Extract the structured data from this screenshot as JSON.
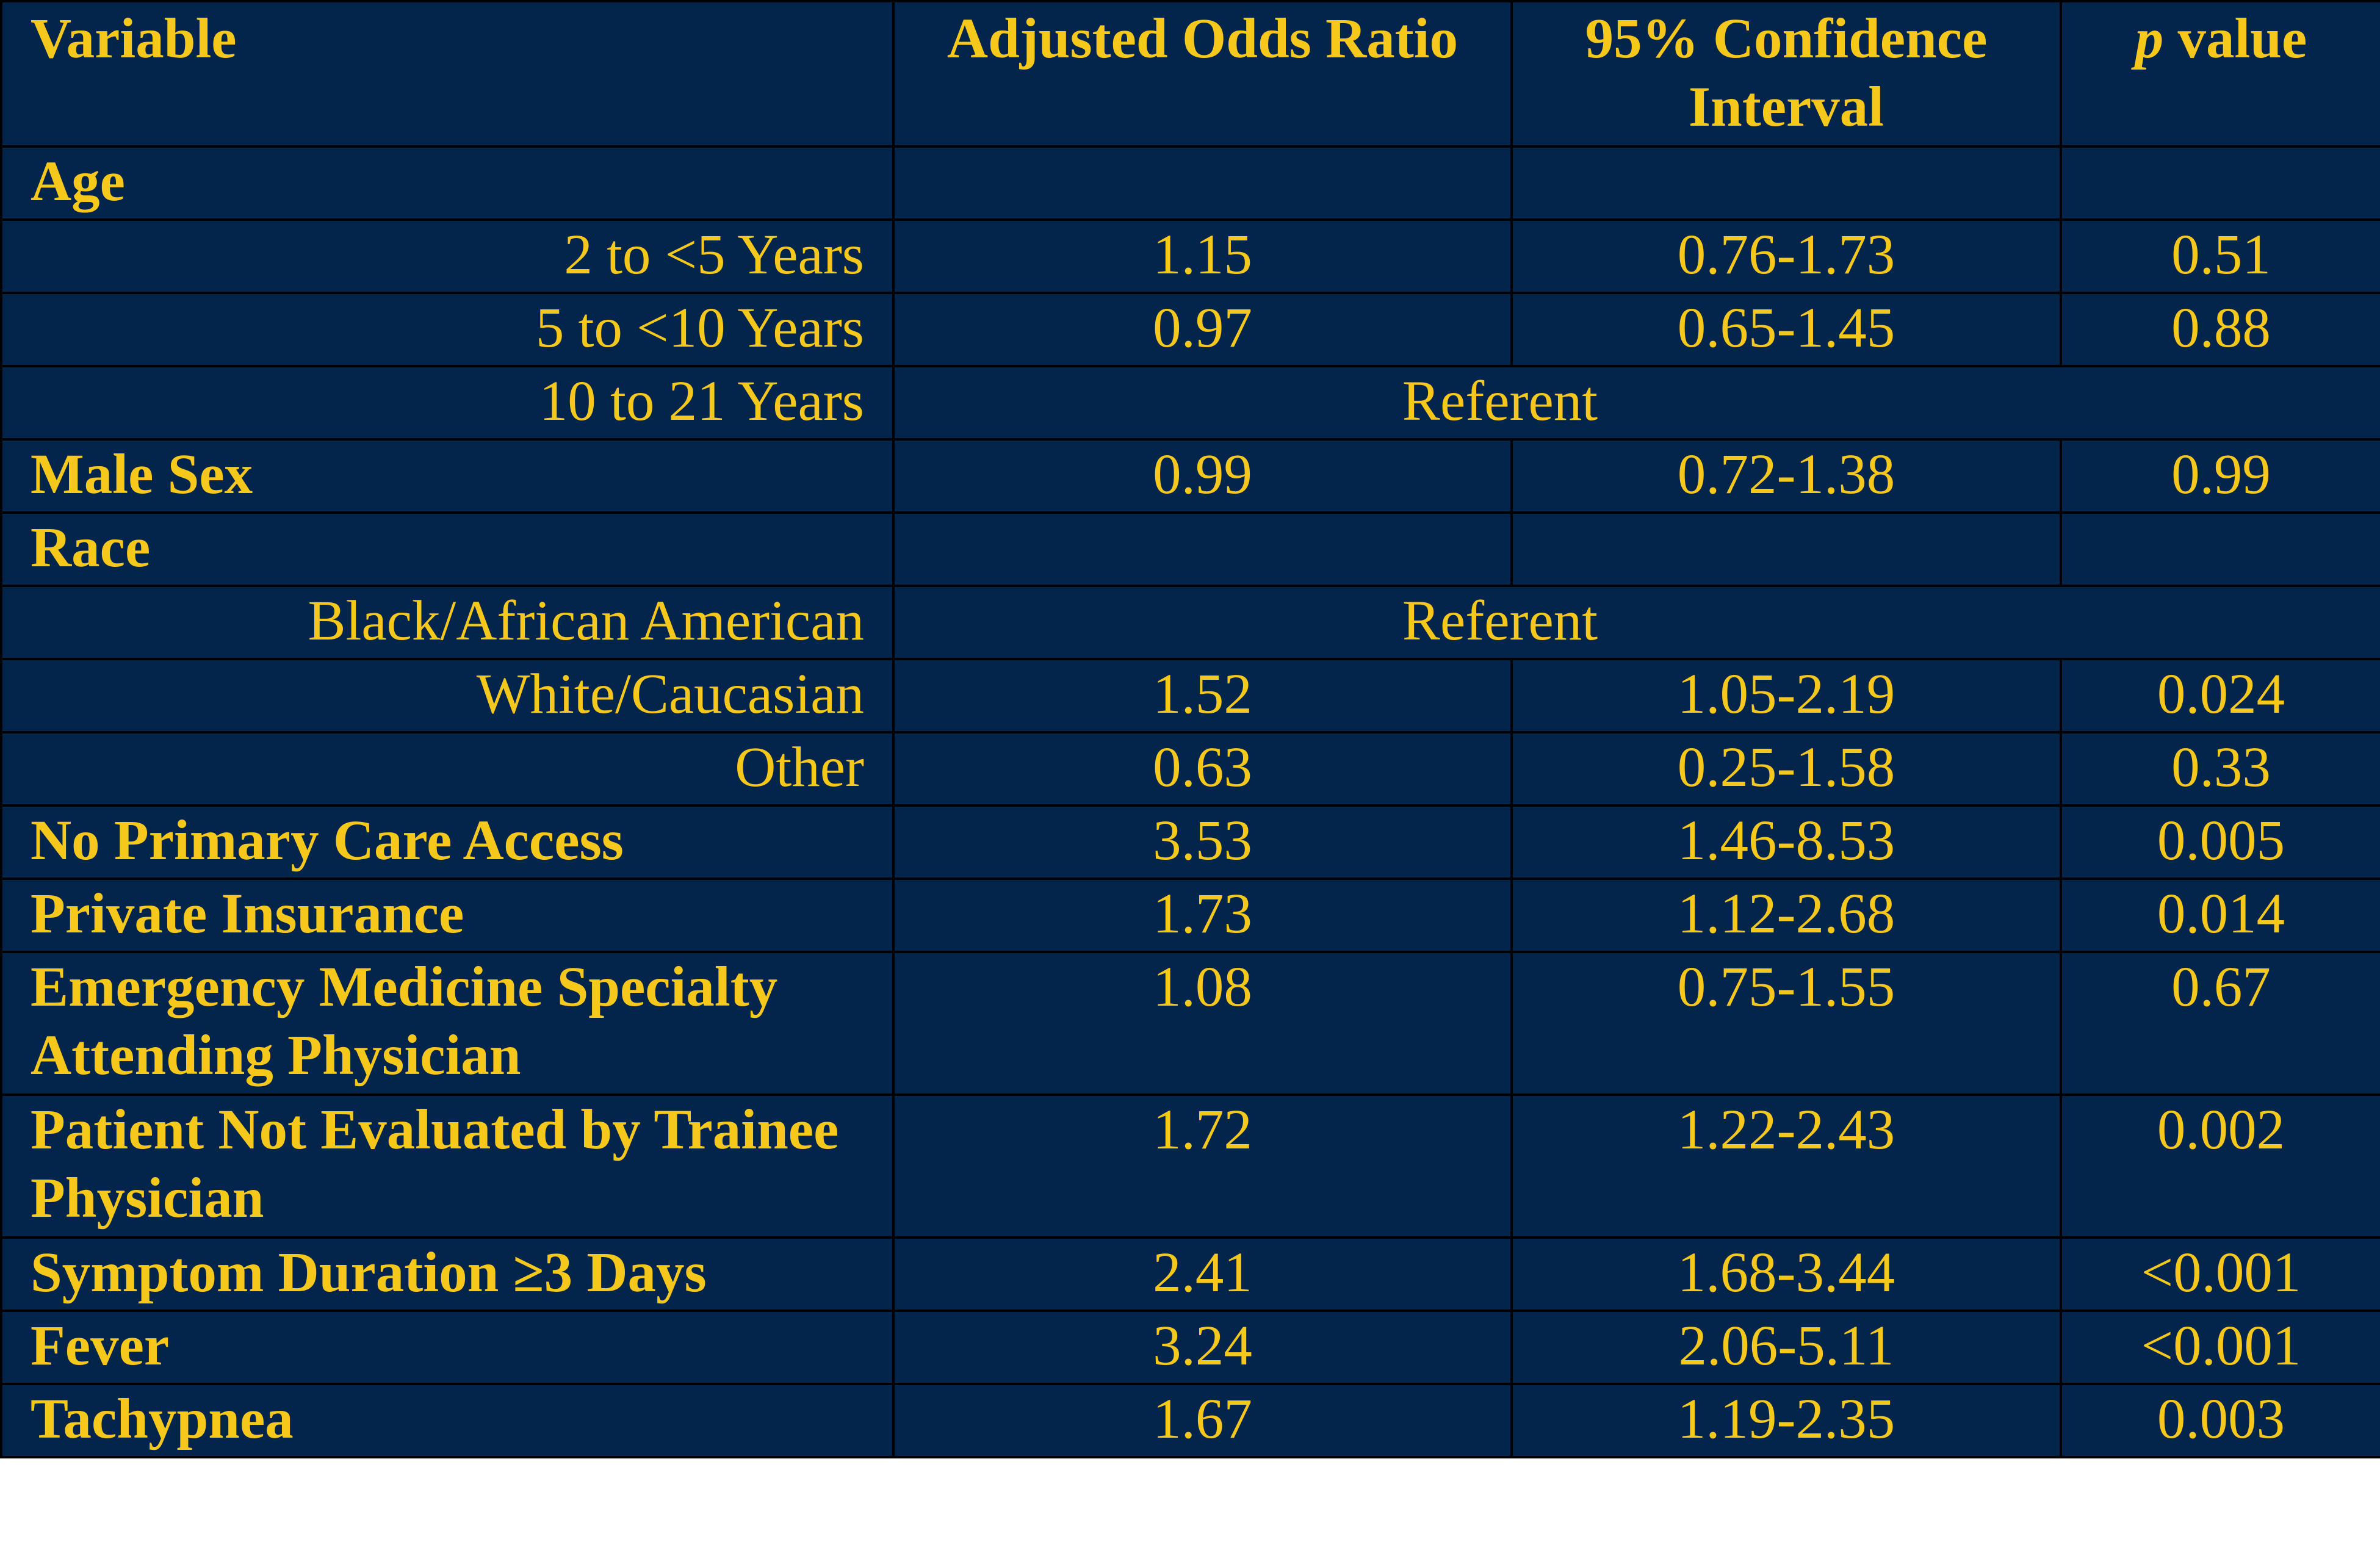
{
  "colors": {
    "background": "#03254c",
    "text": "#f6c81b",
    "grid": "#000000"
  },
  "chart_data": {
    "type": "table",
    "columns": [
      "Variable",
      "Adjusted Odds Ratio",
      "95% Confidence Interval",
      "p value"
    ],
    "header": {
      "variable": "Variable",
      "aor": "Adjusted Odds Ratio",
      "ci": "95% Confidence Interval",
      "p_letter": "p",
      "p_rest": " value"
    },
    "rows": [
      {
        "label": "Age",
        "aor": "",
        "ci": "",
        "p": ""
      },
      {
        "label": "2 to <5 Years",
        "aor": "1.15",
        "ci": "0.76-1.73",
        "p": "0.51"
      },
      {
        "label": "5 to <10 Years",
        "aor": "0.97",
        "ci": "0.65-1.45",
        "p": "0.88"
      },
      {
        "label": "10 to 21 Years",
        "referent": "Referent"
      },
      {
        "label": "Male Sex",
        "aor": "0.99",
        "ci": "0.72-1.38",
        "p": "0.99"
      },
      {
        "label": "Race",
        "aor": "",
        "ci": "",
        "p": ""
      },
      {
        "label": "Black/African American",
        "referent": "Referent"
      },
      {
        "label": "White/Caucasian",
        "aor": "1.52",
        "ci": "1.05-2.19",
        "p": "0.024"
      },
      {
        "label": "Other",
        "aor": "0.63",
        "ci": "0.25-1.58",
        "p": "0.33"
      },
      {
        "label": "No Primary Care Access",
        "aor": "3.53",
        "ci": "1.46-8.53",
        "p": "0.005"
      },
      {
        "label": "Private Insurance",
        "aor": "1.73",
        "ci": "1.12-2.68",
        "p": "0.014"
      },
      {
        "label": "Emergency Medicine Specialty Attending Physician",
        "aor": "1.08",
        "ci": "0.75-1.55",
        "p": "0.67"
      },
      {
        "label": "Patient Not Evaluated by Trainee Physician",
        "aor": "1.72",
        "ci": "1.22-2.43",
        "p": "0.002"
      },
      {
        "label": "Symptom Duration ≥3 Days",
        "aor": "2.41",
        "ci": "1.68-3.44",
        "p": "<0.001"
      },
      {
        "label": "Fever",
        "aor": "3.24",
        "ci": "2.06-5.11",
        "p": "<0.001"
      },
      {
        "label": "Tachypnea",
        "aor": "1.67",
        "ci": "1.19-2.35",
        "p": "0.003"
      }
    ]
  }
}
